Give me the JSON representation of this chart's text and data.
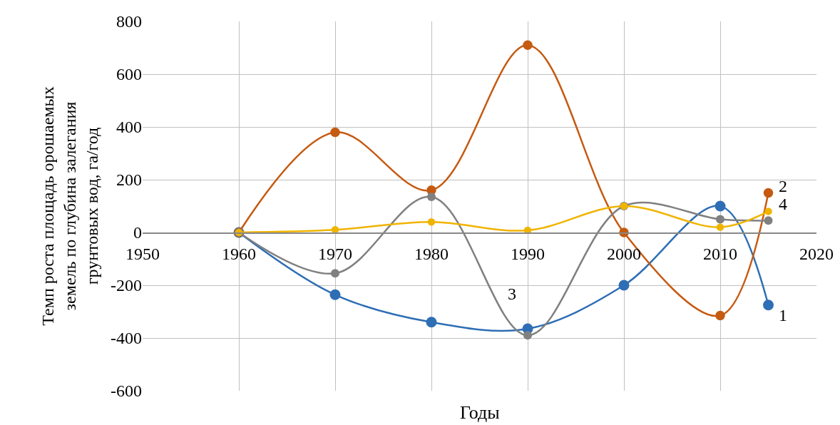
{
  "chart_data": {
    "type": "line",
    "ylabel": "Темп роста площадь орошаемых\nземель по глубина залегания\nгрунтовых вод, га/год",
    "xlabel": "Годы",
    "x": [
      1960,
      1970,
      1980,
      1990,
      2000,
      2010,
      2015
    ],
    "series": [
      {
        "name": "1",
        "color": "#2e6eb5",
        "values": [
          0,
          -236,
          -340,
          -365,
          -200,
          100,
          -275
        ]
      },
      {
        "name": "2",
        "color": "#c55a11",
        "values": [
          0,
          380,
          160,
          710,
          0,
          -315,
          150
        ]
      },
      {
        "name": "3",
        "color": "#808080",
        "values": [
          0,
          -155,
          135,
          -390,
          100,
          50,
          45
        ]
      },
      {
        "name": "4",
        "color": "#f0b400",
        "values": [
          0,
          10,
          40,
          8,
          100,
          20,
          80
        ]
      }
    ],
    "xlim": [
      1950,
      2020
    ],
    "xticks": [
      1950,
      1960,
      1970,
      1980,
      1990,
      2000,
      2010,
      2020
    ],
    "ylim": [
      -600,
      800
    ],
    "yticks": [
      -600,
      -400,
      -200,
      0,
      200,
      400,
      600,
      800
    ],
    "grid": true,
    "legend": false,
    "marker": "circle",
    "line_style": "solid"
  }
}
